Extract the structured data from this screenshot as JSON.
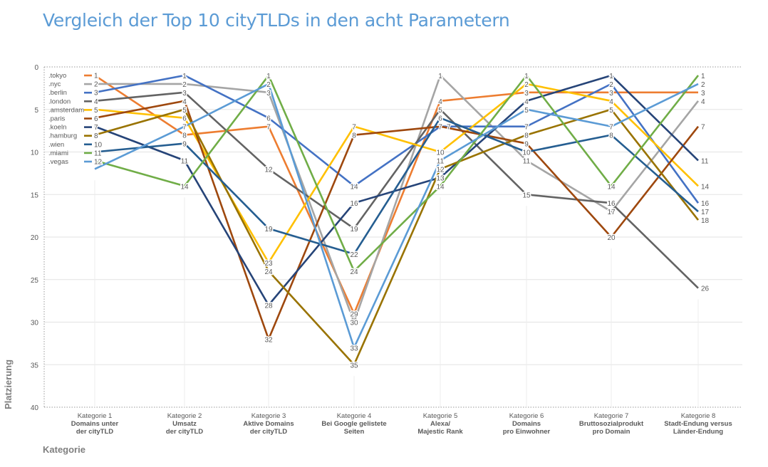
{
  "title": "Vergleich der Top 10 cityTLDs in den acht Parametern",
  "chart_data": {
    "type": "line",
    "title": "Vergleich der Top 10 cityTLDs in den acht Parametern",
    "xlabel": "Kategorie",
    "ylabel": "Platzierung",
    "ylim": [
      40,
      0
    ],
    "y_inverted": true,
    "yticks": [
      0,
      5,
      10,
      15,
      20,
      25,
      30,
      35,
      40
    ],
    "grid": "horizontal",
    "legend": "top-left",
    "categories": [
      [
        "Kategorie 1",
        "Domains unter",
        "der cityTLD"
      ],
      [
        "Kategorie 2",
        "Umsatz",
        "der cityTLD"
      ],
      [
        "Kategorie 3",
        "Aktive Domains",
        "der cityTLD"
      ],
      [
        "Kategorie 4",
        "Bei Google gelistete",
        "Seiten"
      ],
      [
        "Kategorie 5",
        "Alexa/",
        "Majestic Rank"
      ],
      [
        "Kategorie 6",
        "Domains",
        "pro Einwohner"
      ],
      [
        "Kategorie 7",
        "Bruttosozialprodukt",
        "pro Domain"
      ],
      [
        "Kategorie 8",
        "Stadt-Endung versus",
        "Länder-Endung"
      ]
    ],
    "series": [
      {
        "name": ".tokyo",
        "color": "#ED7D31",
        "values": [
          1,
          8,
          7,
          29,
          4,
          3,
          3,
          3
        ]
      },
      {
        "name": ".nyc",
        "color": "#A5A5A5",
        "values": [
          2,
          2,
          3,
          30,
          1,
          11,
          17,
          4
        ]
      },
      {
        "name": ".berlin",
        "color": "#4472C4",
        "values": [
          3,
          1,
          6,
          14,
          7,
          7,
          2,
          16
        ]
      },
      {
        "name": ".london",
        "color": "#636363",
        "values": [
          4,
          3,
          12,
          19,
          5,
          15,
          16,
          26
        ]
      },
      {
        "name": ".amsterdam",
        "color": "#FFC000",
        "values": [
          5,
          6,
          23,
          7,
          10,
          2,
          4,
          14
        ]
      },
      {
        "name": ".paris",
        "color": "#9E480E",
        "values": [
          6,
          4,
          32,
          8,
          7,
          9,
          20,
          7
        ]
      },
      {
        "name": ".koeln",
        "color": "#264478",
        "values": [
          7,
          11,
          28,
          16,
          13,
          4,
          1,
          11
        ]
      },
      {
        "name": ".hamburg",
        "color": "#997300",
        "values": [
          8,
          5,
          24,
          35,
          12,
          8,
          5,
          18
        ]
      },
      {
        "name": ".wien",
        "color": "#255E91",
        "values": [
          10,
          9,
          19,
          22,
          6,
          10,
          8,
          17
        ]
      },
      {
        "name": ".miami",
        "color": "#70AD47",
        "values": [
          11,
          14,
          1,
          24,
          14,
          1,
          14,
          1
        ]
      },
      {
        "name": ".vegas",
        "color": "#5B9BD5",
        "values": [
          12,
          7,
          2,
          33,
          11,
          5,
          7,
          2
        ]
      }
    ]
  }
}
